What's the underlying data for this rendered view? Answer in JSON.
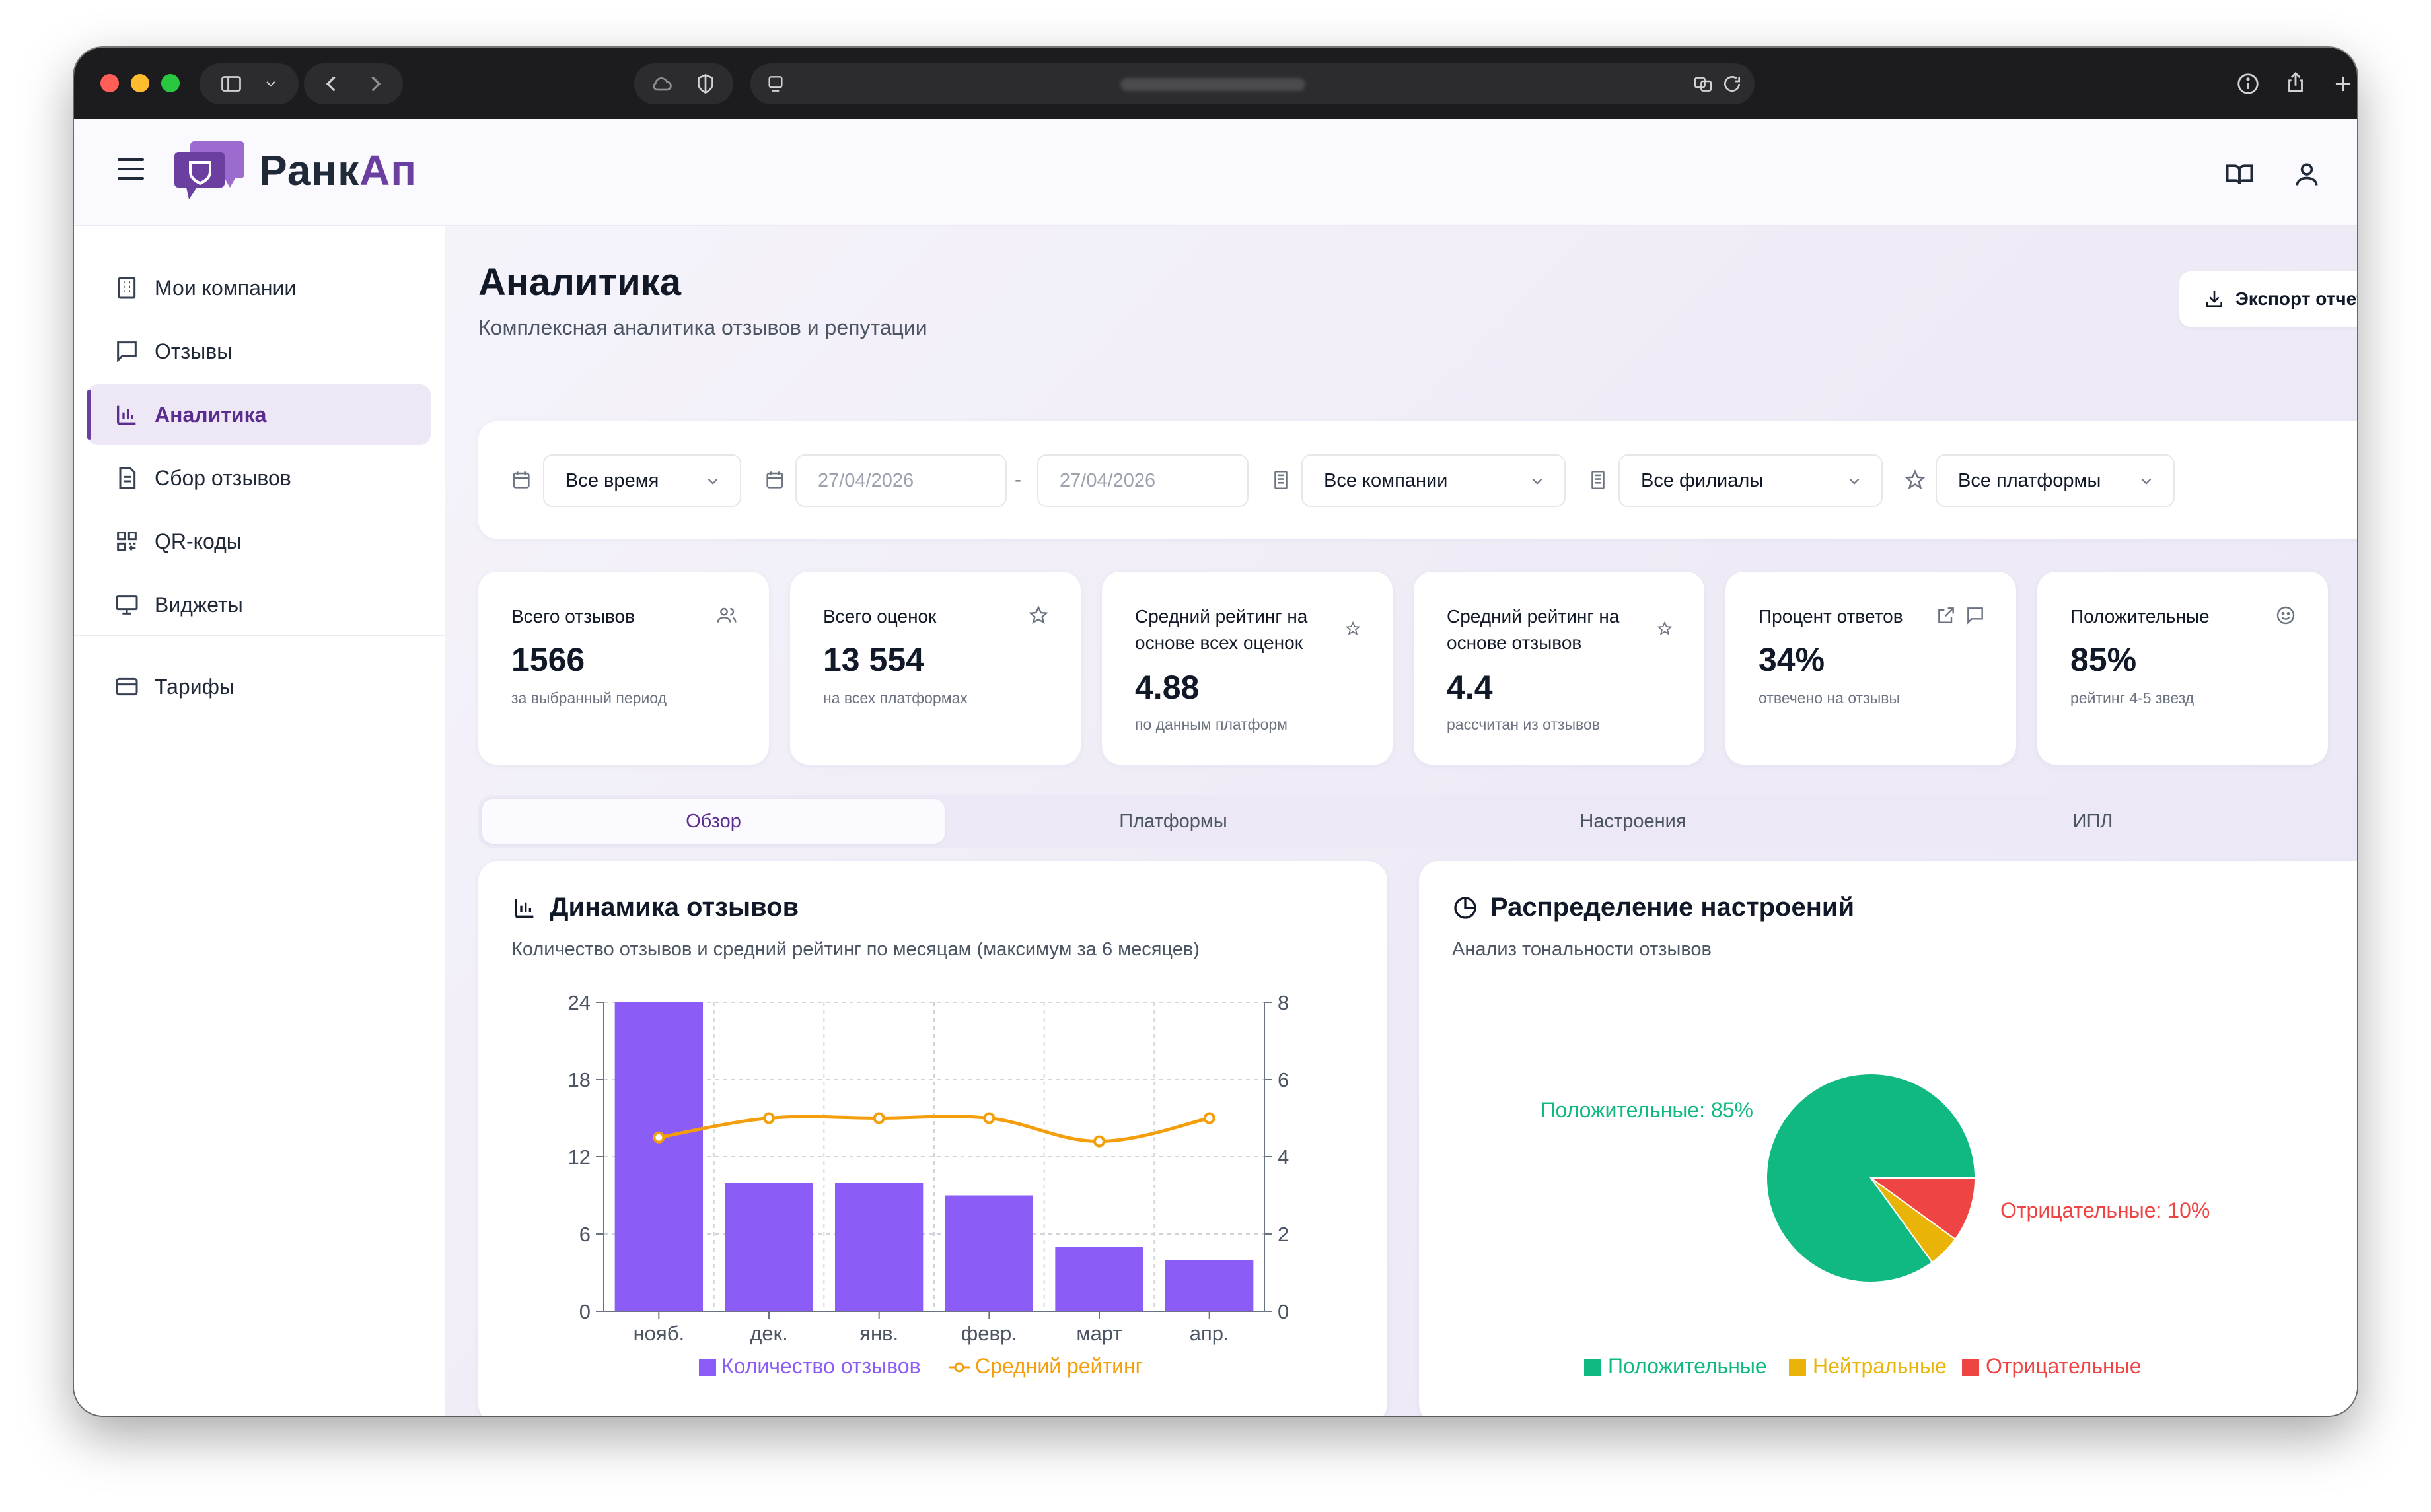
{
  "brand": {
    "name_main": "Ранк",
    "name_accent": "Ап"
  },
  "sidebar": {
    "items": [
      {
        "label": "Мои компании",
        "icon": "building-icon"
      },
      {
        "label": "Отзывы",
        "icon": "message-square-icon"
      },
      {
        "label": "Аналитика",
        "icon": "bar-chart-icon",
        "active": true
      },
      {
        "label": "Сбор отзывов",
        "icon": "file-text-icon"
      },
      {
        "label": "QR-коды",
        "icon": "qr-code-icon"
      },
      {
        "label": "Виджеты",
        "icon": "monitor-icon"
      },
      {
        "label": "Тарифы",
        "icon": "credit-card-icon"
      }
    ]
  },
  "page": {
    "title": "Аналитика",
    "subtitle": "Комплексная аналитика отзывов и репутации",
    "export_label": "Экспорт отчета"
  },
  "filters": {
    "period": "Все время",
    "date_from": "27/04/2026",
    "date_to": "27/04/2026",
    "company": "Все компании",
    "branch": "Все филиалы",
    "platform": "Все платформы"
  },
  "stats": [
    {
      "title": "Всего отзывов",
      "value": "1566",
      "sub": "за выбранный период",
      "icon": "users-icon"
    },
    {
      "title": "Всего оценок",
      "value": "13 554",
      "sub": "на всех платформах",
      "icon": "star-icon"
    },
    {
      "title": "Средний рейтинг на основе всех оценок",
      "value": "4.88",
      "sub": "по данным платформ",
      "icon": "star-icon"
    },
    {
      "title": "Средний рейтинг на основе отзывов",
      "value": "4.4",
      "sub": "рассчитан из отзывов",
      "icon": "star-icon"
    },
    {
      "title": "Процент ответов",
      "value": "34%",
      "sub": "отвечено на отзывы",
      "icon": "external-link-icon"
    },
    {
      "title": "Положительные",
      "value": "85%",
      "sub": "рейтинг 4-5 звезд",
      "icon": "smile-icon"
    }
  ],
  "tabs": [
    "Обзор",
    "Платформы",
    "Настроения",
    "ИПЛ"
  ],
  "dynamics": {
    "title": "Динамика отзывов",
    "subtitle": "Количество отзывов и средний рейтинг по месяцам (максимум за 6 месяцев)"
  },
  "sentiment": {
    "title": "Распределение настроений",
    "subtitle": "Анализ тональности отзывов"
  },
  "chart_data": [
    {
      "type": "bar",
      "categories": [
        "нояб.",
        "дек.",
        "янв.",
        "февр.",
        "март",
        "апр."
      ],
      "series": [
        {
          "name": "Количество отзывов",
          "type": "bar",
          "axis": "left",
          "values": [
            24,
            10,
            10,
            9,
            5,
            4
          ],
          "color": "#8b5cf6"
        },
        {
          "name": "Средний рейтинг",
          "type": "line",
          "axis": "right",
          "values": [
            4.5,
            5,
            5,
            5,
            4.4,
            5
          ],
          "color": "#f59e0b"
        }
      ],
      "y_left": {
        "min": 0,
        "max": 24,
        "ticks": [
          0,
          6,
          12,
          18,
          24
        ]
      },
      "y_right": {
        "min": 0,
        "max": 8,
        "ticks": [
          0,
          2,
          4,
          6,
          8
        ]
      },
      "grid": true,
      "legend": "bottom"
    },
    {
      "type": "pie",
      "slices": [
        {
          "label": "Положительные",
          "value": 85,
          "color": "#10b981",
          "callout": "Положительные: 85%"
        },
        {
          "label": "Нейтральные",
          "value": 5,
          "color": "#eab308"
        },
        {
          "label": "Отрицательные",
          "value": 10,
          "color": "#ef4444",
          "callout": "Отрицательные: 10%"
        }
      ],
      "legend": "bottom"
    }
  ]
}
